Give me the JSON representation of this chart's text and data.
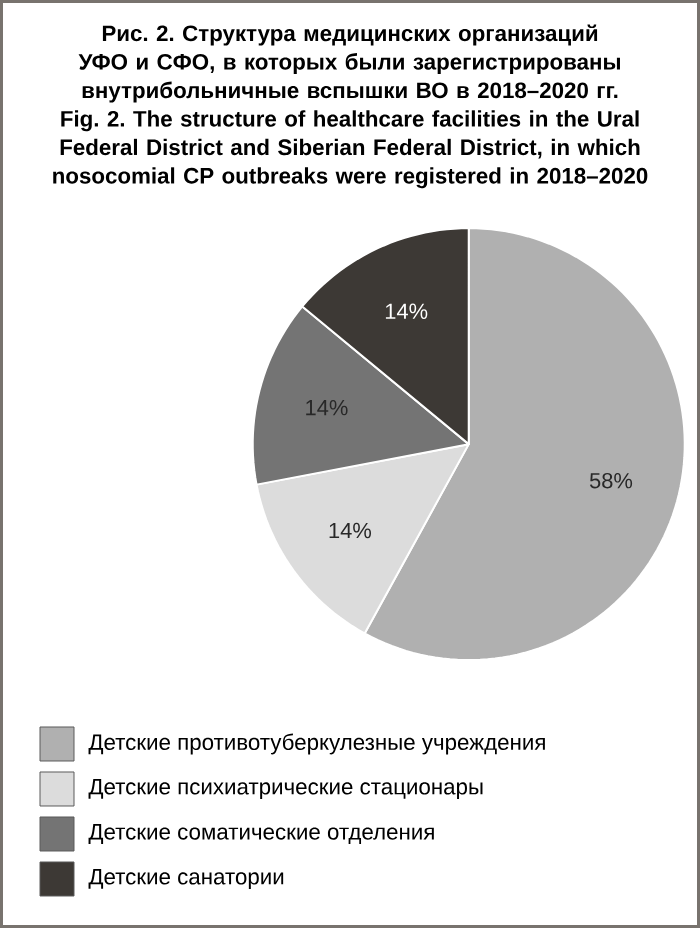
{
  "chart_data": {
    "type": "pie",
    "title": "Рис. 2. Структура медицинских организаций УФО и СФО, в которых были зарегистрированы внутрибольничные вспышки ВО в 2018–2020 гг.",
    "subtitle": "Fig. 2. The structure of healthcare facilities in the Ural Federal District and Siberian Federal District, in which nosocomial CP outbreaks were registered in 2018–2020",
    "categories": [
      "Детские противотуберкулезные учреждения",
      "Детские психиатрические стационары",
      "Детские соматические отделения",
      "Детские санатории"
    ],
    "values": [
      58,
      14,
      14,
      14
    ],
    "colors": [
      "#b0b0b0",
      "#dcdcdc",
      "#747474",
      "#3d3935"
    ],
    "value_labels": [
      "58%",
      "14%",
      "14%",
      "14%"
    ],
    "legend": "bottom"
  }
}
